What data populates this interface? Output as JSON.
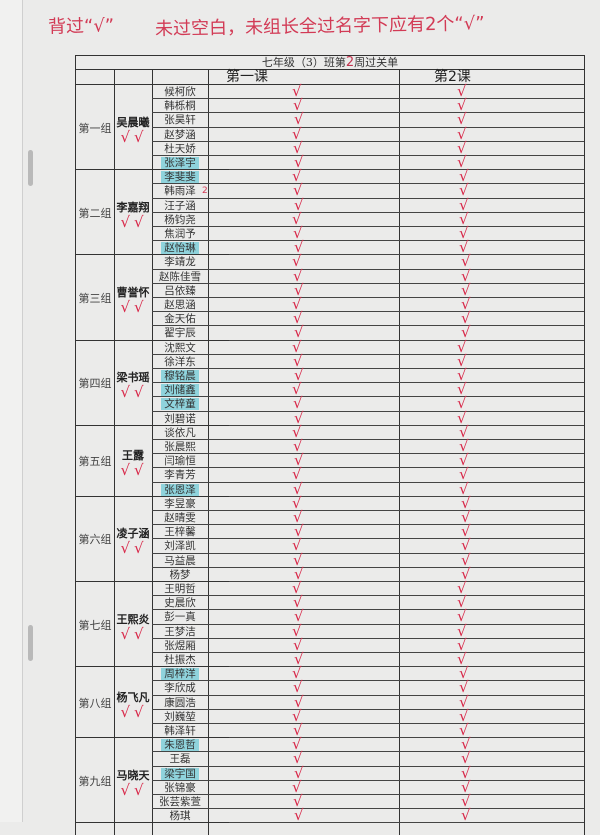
{
  "notes": {
    "left": "背过“√”",
    "right": "未过空白，未组长全过名字下应有2个“√”"
  },
  "sheet": {
    "title_prefix": "七年级（3）班第",
    "week": "2",
    "title_suffix": "周过关单",
    "lesson1": "第一课",
    "lesson2": "第2课",
    "check_mark": "√",
    "check_color": "#d8294a",
    "highlight_color": "#8fd3dc"
  },
  "groups": [
    {
      "name": "第一组",
      "leader": "吴晨曦",
      "leader_checks": "√√",
      "members": [
        {
          "name": "候柯欣",
          "l1": true,
          "l2": true
        },
        {
          "name": "韩栎桐",
          "l1": true,
          "l2": true
        },
        {
          "name": "张昊轩",
          "l1": true,
          "l2": true
        },
        {
          "name": "赵梦涵",
          "l1": true,
          "l2": true
        },
        {
          "name": "杜天娇",
          "l1": true,
          "l2": true
        },
        {
          "name": "张泽宇",
          "l1": true,
          "l2": true,
          "highlight": true
        }
      ]
    },
    {
      "name": "第二组",
      "leader": "李嘉翔",
      "leader_checks": "√√",
      "members": [
        {
          "name": "李斐斐",
          "l1": true,
          "l2": true,
          "highlight": true
        },
        {
          "name": "韩雨泽",
          "l1": true,
          "l2": true,
          "note": "2"
        },
        {
          "name": "汪子涵",
          "l1": true,
          "l2": true
        },
        {
          "name": "杨钧尧",
          "l1": true,
          "l2": true
        },
        {
          "name": "焦润予",
          "l1": true,
          "l2": true
        },
        {
          "name": "赵怡琳",
          "l1": true,
          "l2": true,
          "highlight": true
        }
      ]
    },
    {
      "name": "第三组",
      "leader": "曹誉怀",
      "leader_checks": "√√",
      "members": [
        {
          "name": "李靖龙",
          "l1": true,
          "l2": true
        },
        {
          "name": "赵陈佳雪",
          "l1": true,
          "l2": true
        },
        {
          "name": "吕依臻",
          "l1": true,
          "l2": true
        },
        {
          "name": "赵思涵",
          "l1": true,
          "l2": true
        },
        {
          "name": "金天佑",
          "l1": true,
          "l2": true
        },
        {
          "name": "翟宇辰",
          "l1": true,
          "l2": true
        }
      ]
    },
    {
      "name": "第四组",
      "leader": "梁书瑶",
      "leader_checks": "√√",
      "members": [
        {
          "name": "沈熙文",
          "l1": true,
          "l2": true
        },
        {
          "name": "徐洋东",
          "l1": true,
          "l2": true
        },
        {
          "name": "穆铭晨",
          "l1": true,
          "l2": true,
          "highlight": true
        },
        {
          "name": "刘储鑫",
          "l1": true,
          "l2": true,
          "highlight": true
        },
        {
          "name": "文梓童",
          "l1": true,
          "l2": true,
          "highlight": true
        },
        {
          "name": "刘碧诺",
          "l1": true,
          "l2": true
        }
      ]
    },
    {
      "name": "第五组",
      "leader": "王露",
      "leader_checks": "√√",
      "members": [
        {
          "name": "谈依凡",
          "l1": true,
          "l2": true
        },
        {
          "name": "张晨熙",
          "l1": true,
          "l2": true
        },
        {
          "name": "闫瑜恒",
          "l1": true,
          "l2": true
        },
        {
          "name": "李青芳",
          "l1": true,
          "l2": true
        },
        {
          "name": "张恩泽",
          "l1": true,
          "l2": true,
          "highlight": true
        }
      ]
    },
    {
      "name": "第六组",
      "leader": "凌子涵",
      "leader_checks": "√√",
      "members": [
        {
          "name": "李昱豪",
          "l1": true,
          "l2": true
        },
        {
          "name": "赵晴雯",
          "l1": true,
          "l2": true
        },
        {
          "name": "王梓馨",
          "l1": true,
          "l2": true
        },
        {
          "name": "刘泽凯",
          "l1": true,
          "l2": true
        },
        {
          "name": "马益晨",
          "l1": true,
          "l2": true
        },
        {
          "name": "杨梦",
          "l1": true,
          "l2": true
        }
      ]
    },
    {
      "name": "第七组",
      "leader": "王熙炎",
      "leader_checks": "√√",
      "members": [
        {
          "name": "王明哲",
          "l1": true,
          "l2": true
        },
        {
          "name": "史晨欣",
          "l1": true,
          "l2": true
        },
        {
          "name": "彭一真",
          "l1": true,
          "l2": true
        },
        {
          "name": "王梦洁",
          "l1": true,
          "l2": true
        },
        {
          "name": "张煜厢",
          "l1": true,
          "l2": true
        },
        {
          "name": "杜振杰",
          "l1": true,
          "l2": true
        }
      ]
    },
    {
      "name": "第八组",
      "leader": "杨飞凡",
      "leader_checks": "√√",
      "members": [
        {
          "name": "周梓洋",
          "l1": true,
          "l2": true,
          "highlight": true
        },
        {
          "name": "李欣成",
          "l1": true,
          "l2": true
        },
        {
          "name": "康圆浩",
          "l1": true,
          "l2": true
        },
        {
          "name": "刘巍堃",
          "l1": true,
          "l2": true
        },
        {
          "name": "韩泽轩",
          "l1": true,
          "l2": true
        }
      ]
    },
    {
      "name": "第九组",
      "leader": "马晓天",
      "leader_checks": "√√",
      "members": [
        {
          "name": "朱恩哲",
          "l1": true,
          "l2": true,
          "highlight": true
        },
        {
          "name": "王磊",
          "l1": true,
          "l2": true
        },
        {
          "name": "梁宇国",
          "l1": true,
          "l2": true,
          "highlight": true
        },
        {
          "name": "张锦豪",
          "l1": true,
          "l2": true
        },
        {
          "name": "张芸紫萱",
          "l1": true,
          "l2": true
        },
        {
          "name": "杨琪",
          "l1": true,
          "l2": true
        }
      ]
    }
  ]
}
